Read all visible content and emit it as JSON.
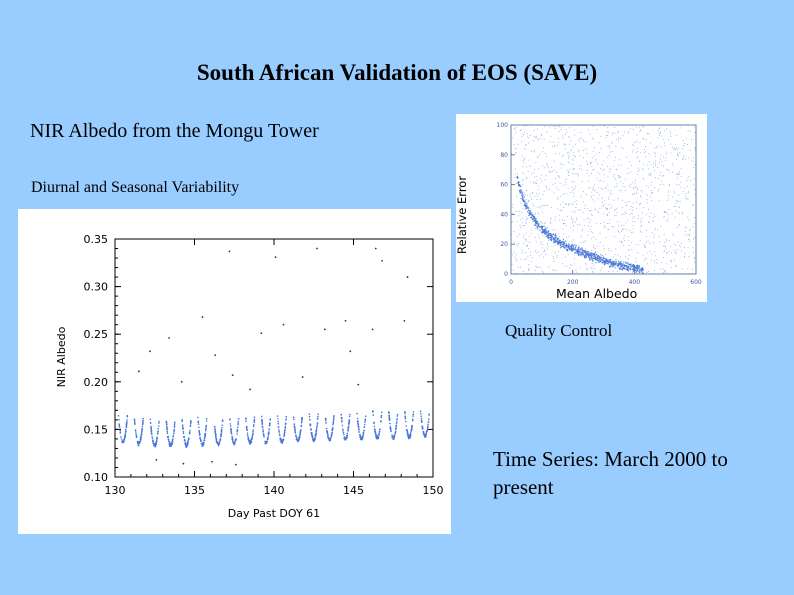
{
  "slide": {
    "title": "South African Validation of EOS (SAVE)",
    "subtitle": "NIR Albedo from the Mongu Tower",
    "subtitle2": "Diurnal and Seasonal Variability",
    "qc_caption": "Quality Control",
    "ts_caption": "Time Series: March 2000 to  present"
  },
  "colors": {
    "background": "#99ccff",
    "points": "#4a78d8"
  },
  "chart_data": [
    {
      "type": "scatter",
      "title": "",
      "xlabel": "Day Past DOY 61",
      "ylabel": "NIR Albedo",
      "xlim": [
        130,
        150
      ],
      "ylim": [
        0.1,
        0.35
      ],
      "x_ticks": [
        "130",
        "135",
        "140",
        "145",
        "150"
      ],
      "y_ticks": [
        "0.10",
        "0.15",
        "0.20",
        "0.25",
        "0.30",
        "0.35"
      ],
      "grid": false,
      "pattern": "diurnal cycle: one U-shaped dip per day, daily minimum near 0.13-0.14, rising to about 0.16-0.17 at the day's edges",
      "daily_minima": [
        {
          "day": 130.5,
          "albedo": 0.137
        },
        {
          "day": 131.5,
          "albedo": 0.135
        },
        {
          "day": 132.5,
          "albedo": 0.133
        },
        {
          "day": 133.5,
          "albedo": 0.133
        },
        {
          "day": 134.5,
          "albedo": 0.133
        },
        {
          "day": 135.5,
          "albedo": 0.134
        },
        {
          "day": 136.5,
          "albedo": 0.134
        },
        {
          "day": 137.5,
          "albedo": 0.135
        },
        {
          "day": 138.5,
          "albedo": 0.136
        },
        {
          "day": 139.5,
          "albedo": 0.136
        },
        {
          "day": 140.5,
          "albedo": 0.137
        },
        {
          "day": 141.5,
          "albedo": 0.138
        },
        {
          "day": 142.5,
          "albedo": 0.139
        },
        {
          "day": 143.5,
          "albedo": 0.139
        },
        {
          "day": 144.5,
          "albedo": 0.14
        },
        {
          "day": 145.5,
          "albedo": 0.14
        },
        {
          "day": 146.5,
          "albedo": 0.141
        },
        {
          "day": 147.5,
          "albedo": 0.141
        },
        {
          "day": 148.5,
          "albedo": 0.142
        },
        {
          "day": 149.5,
          "albedo": 0.143
        }
      ],
      "outliers": [
        {
          "x": 137.2,
          "y": 0.337
        },
        {
          "x": 140.1,
          "y": 0.331
        },
        {
          "x": 142.7,
          "y": 0.34
        },
        {
          "x": 146.4,
          "y": 0.34
        },
        {
          "x": 146.8,
          "y": 0.327
        },
        {
          "x": 148.4,
          "y": 0.31
        },
        {
          "x": 135.5,
          "y": 0.268
        },
        {
          "x": 140.6,
          "y": 0.26
        },
        {
          "x": 144.5,
          "y": 0.264
        },
        {
          "x": 148.2,
          "y": 0.264
        },
        {
          "x": 133.4,
          "y": 0.246
        },
        {
          "x": 139.2,
          "y": 0.251
        },
        {
          "x": 143.2,
          "y": 0.255
        },
        {
          "x": 146.2,
          "y": 0.255
        },
        {
          "x": 132.2,
          "y": 0.232
        },
        {
          "x": 136.3,
          "y": 0.228
        },
        {
          "x": 144.8,
          "y": 0.232
        },
        {
          "x": 131.5,
          "y": 0.211
        },
        {
          "x": 137.4,
          "y": 0.207
        },
        {
          "x": 141.8,
          "y": 0.205
        },
        {
          "x": 138.5,
          "y": 0.192
        },
        {
          "x": 134.2,
          "y": 0.2
        },
        {
          "x": 145.3,
          "y": 0.197
        },
        {
          "x": 136.1,
          "y": 0.116
        },
        {
          "x": 137.6,
          "y": 0.113
        },
        {
          "x": 134.3,
          "y": 0.114
        },
        {
          "x": 132.6,
          "y": 0.118
        }
      ]
    },
    {
      "type": "scatter",
      "title": "",
      "xlabel": "Mean Albedo",
      "ylabel": "Relative Error",
      "xlim": [
        0,
        600
      ],
      "ylim": [
        0,
        100
      ],
      "x_ticks": [
        "0",
        "200",
        "400",
        "600"
      ],
      "y_ticks": [
        "0",
        "20",
        "40",
        "60",
        "80",
        "100"
      ],
      "grid": false,
      "pattern": "dense band decaying from about 65 near x=20 to about 3 near x=430, with scattered points over the whole range",
      "band_curve": [
        {
          "x": 20,
          "y": 65
        },
        {
          "x": 30,
          "y": 57
        },
        {
          "x": 40,
          "y": 50
        },
        {
          "x": 60,
          "y": 41
        },
        {
          "x": 80,
          "y": 35
        },
        {
          "x": 100,
          "y": 30
        },
        {
          "x": 130,
          "y": 25
        },
        {
          "x": 160,
          "y": 21
        },
        {
          "x": 200,
          "y": 17
        },
        {
          "x": 250,
          "y": 13
        },
        {
          "x": 300,
          "y": 9
        },
        {
          "x": 350,
          "y": 6
        },
        {
          "x": 400,
          "y": 4
        },
        {
          "x": 430,
          "y": 3
        }
      ]
    }
  ]
}
